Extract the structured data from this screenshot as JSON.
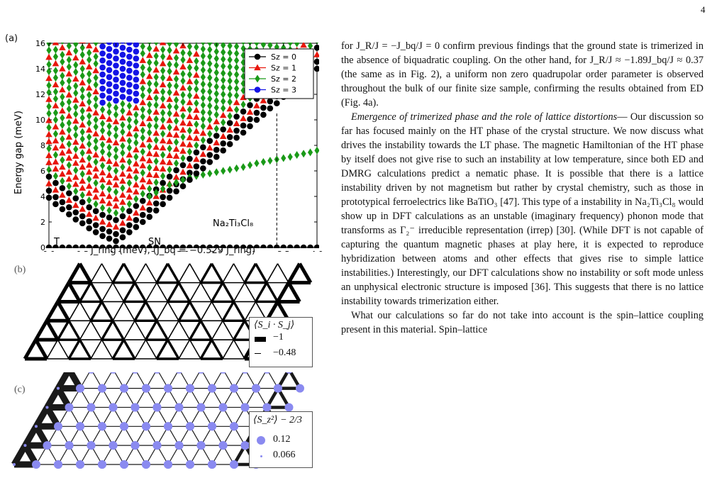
{
  "page_number": "4",
  "figure": {
    "panel_a_label": "(a)",
    "panel_b_label": "(b)",
    "panel_c_label": "(c)",
    "panel_b_legend": {
      "title": "⟨S_i · S_j⟩",
      "entries": [
        "−1",
        "−0.48"
      ]
    },
    "panel_c_legend": {
      "title": "⟨S_z²⟩ − 2/3",
      "entries": [
        "0.12",
        "0.066"
      ]
    }
  },
  "chart_data": {
    "type": "scatter",
    "ylabel": "Energy gap (meV)",
    "xlabel": "J_ring (meV), (J_bq = −0.529 J_ring)",
    "xlim": [
      0,
      4
    ],
    "ylim": [
      0,
      16
    ],
    "x_ticks": [
      "0.0",
      "0.5",
      "1.0",
      "1.5",
      "2.0",
      "2.5",
      "3.0",
      "3.5",
      "4.0"
    ],
    "y_ticks": [
      "0",
      "2",
      "4",
      "6",
      "8",
      "10",
      "12",
      "14",
      "16"
    ],
    "legend_position": "top-right",
    "series": [
      {
        "name": "Sz = 0",
        "color": "#000000",
        "marker": "circle"
      },
      {
        "name": "Sz = 1",
        "color": "#e8160c",
        "marker": "triangle"
      },
      {
        "name": "Sz = 2",
        "color": "#1a9a18",
        "marker": "diamond"
      },
      {
        "name": "Sz = 3",
        "color": "#1414e6",
        "marker": "circle"
      }
    ],
    "annotations": [
      "T",
      "SN",
      "Na₂Ti₃Cl₈"
    ],
    "vline_x": 3.4,
    "ground_state_gap": 0,
    "lowest_singlet_gap": [
      [
        0.0,
        3.9
      ],
      [
        0.1,
        3.4
      ],
      [
        0.2,
        3.0
      ],
      [
        0.3,
        2.6
      ],
      [
        0.4,
        2.2
      ],
      [
        0.5,
        1.9
      ],
      [
        0.6,
        1.5
      ],
      [
        0.7,
        1.2
      ],
      [
        0.8,
        0.9
      ],
      [
        0.9,
        0.7
      ],
      [
        1.0,
        0.5
      ],
      [
        1.1,
        0.8
      ],
      [
        1.2,
        1.2
      ],
      [
        1.3,
        1.6
      ],
      [
        1.4,
        2.0
      ],
      [
        1.5,
        2.4
      ],
      [
        1.6,
        2.9
      ],
      [
        1.7,
        3.4
      ],
      [
        1.8,
        3.9
      ],
      [
        1.9,
        4.4
      ],
      [
        2.0,
        4.8
      ],
      [
        2.1,
        5.3
      ],
      [
        2.2,
        5.8
      ],
      [
        2.3,
        6.2
      ],
      [
        2.4,
        6.7
      ],
      [
        2.5,
        7.1
      ],
      [
        2.6,
        7.6
      ],
      [
        2.7,
        8.1
      ],
      [
        2.8,
        8.6
      ],
      [
        2.9,
        9.0
      ],
      [
        3.0,
        9.5
      ],
      [
        3.1,
        10.0
      ],
      [
        3.2,
        10.4
      ],
      [
        3.3,
        10.9
      ],
      [
        3.4,
        11.3
      ],
      [
        3.5,
        11.8
      ],
      [
        3.6,
        12.2
      ],
      [
        3.7,
        12.7
      ],
      [
        3.8,
        13.1
      ],
      [
        3.9,
        13.6
      ],
      [
        4.0,
        14.0
      ]
    ],
    "sn_triplet_branch": [
      [
        1.5,
        4.0
      ],
      [
        1.6,
        4.3
      ],
      [
        1.7,
        4.6
      ],
      [
        1.8,
        4.9
      ],
      [
        1.9,
        5.1
      ],
      [
        2.0,
        5.3
      ],
      [
        2.1,
        5.5
      ],
      [
        2.2,
        5.6
      ],
      [
        2.3,
        5.7
      ],
      [
        2.4,
        5.8
      ],
      [
        2.5,
        5.9
      ],
      [
        2.6,
        6.0
      ],
      [
        2.7,
        6.1
      ],
      [
        2.8,
        6.2
      ],
      [
        2.9,
        6.3
      ],
      [
        3.0,
        6.45
      ],
      [
        3.1,
        6.6
      ],
      [
        3.2,
        6.7
      ],
      [
        3.3,
        6.8
      ],
      [
        3.4,
        6.9
      ],
      [
        3.5,
        7.0
      ],
      [
        3.6,
        7.1
      ],
      [
        3.7,
        7.25
      ],
      [
        3.8,
        7.35
      ],
      [
        3.9,
        7.45
      ],
      [
        4.0,
        7.6
      ]
    ]
  },
  "text": {
    "p1": "for J_R/J = −J_bq/J = 0 confirm previous findings that the ground state is trimerized in the absence of biquadratic coupling. On the other hand, for J_R/J ≈ −1.89J_bq/J ≈ 0.37 (the same as in Fig. 2), a uniform non zero quadrupolar order parameter is observed throughout the bulk of our finite size sample, confirming the results obtained from ED (Fig. 4a).",
    "p2_lead": "Emergence of trimerized phase and the role of lattice distortions",
    "p2": "— Our discussion so far has focused mainly on the HT phase of the crystal structure. We now discuss what drives the instability towards the LT phase. The magnetic Hamiltonian of the HT phase by itself does not give rise to such an instability at low temperature, since both ED and DMRG calculations predict a nematic phase. It is possible that there is a lattice instability driven by not magnetism but rather by crystal chemistry, such as those in prototypical ferroelectrics like BaTiO₃ [47]. This type of a instability in Na₂Ti₃Cl₈ would show up in DFT calculations as an unstable (imaginary frequency) phonon mode that transforms as Γ₂⁻ irreducible representation (irrep) [30]. (While DFT is not capable of capturing the quantum magnetic phases at play here, it is expected to reproduce hybridization between atoms and other effects that gives rise to simple lattice instabilities.) Interestingly, our DFT calculations show no instability or soft mode unless an unphysical electronic structure is imposed [36]. This suggests that there is no lattice instability towards trimerization either.",
    "p3": "What our calculations so far do not take into account is the spin–lattice coupling present in this material. Spin–lattice"
  }
}
